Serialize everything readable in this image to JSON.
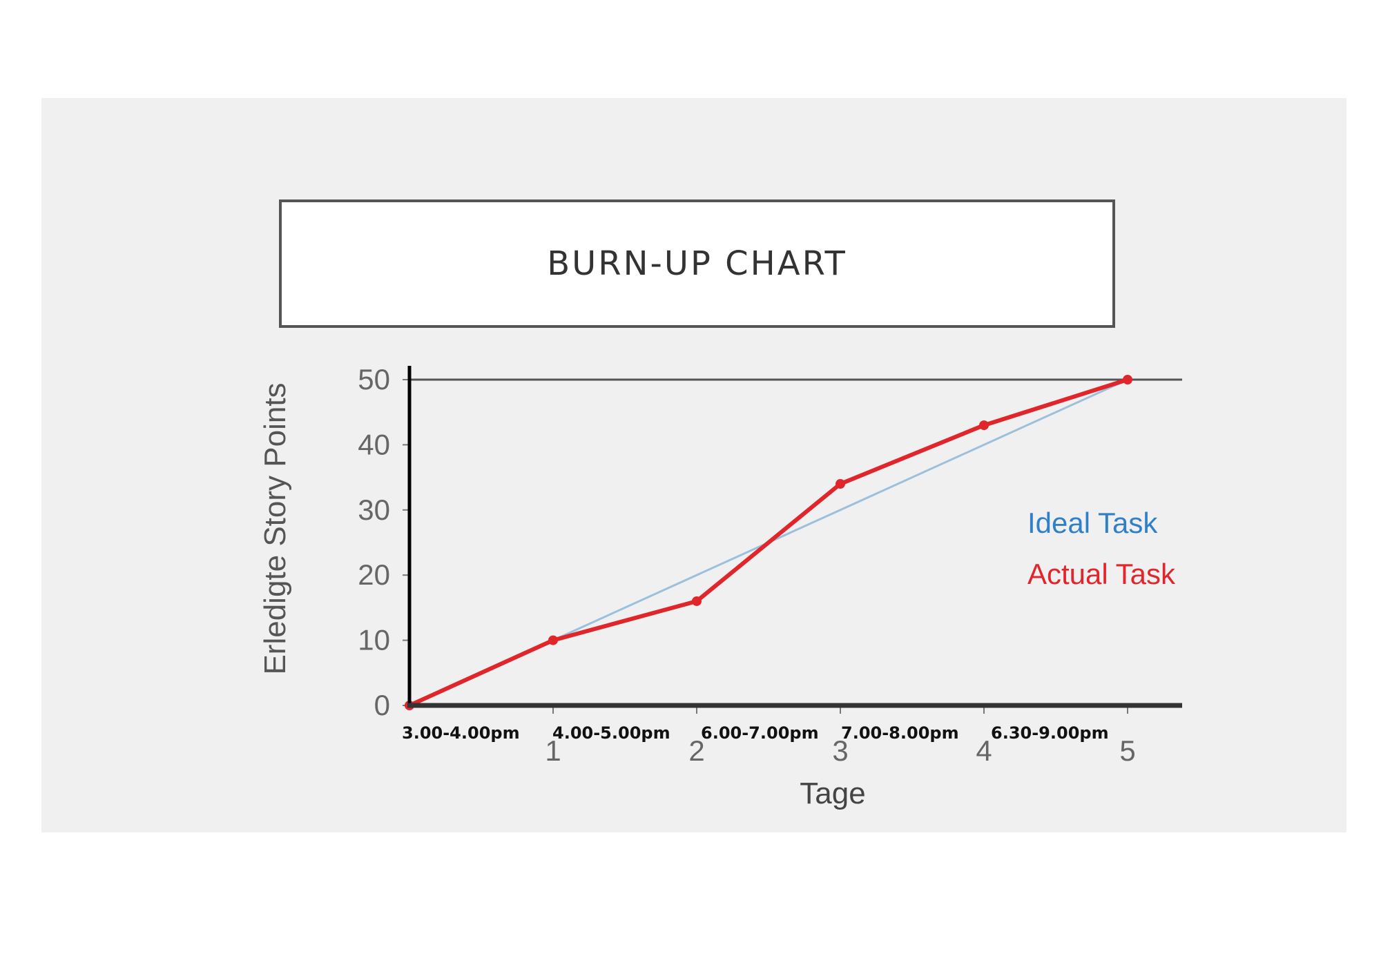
{
  "chart_data": {
    "type": "line",
    "title": "BURN-UP CHART",
    "xlabel": "Tage",
    "ylabel": "Erledigte Story Points",
    "x": [
      0,
      1,
      2,
      3,
      4,
      5
    ],
    "xticks": [
      "1",
      "2",
      "3",
      "4",
      "5"
    ],
    "yticks": [
      "0",
      "10",
      "20",
      "30",
      "40",
      "50"
    ],
    "xlim": [
      0,
      5
    ],
    "ylim": [
      0,
      50
    ],
    "time_labels": [
      "3.00-4.00pm",
      "4.00-5.00pm",
      "6.00-7.00pm",
      "7.00-8.00pm",
      "6.30-9.00pm"
    ],
    "target": 50,
    "series": [
      {
        "name": "Ideal Task",
        "color": "#9cc0dc",
        "x": [
          1,
          5
        ],
        "y": [
          10,
          50
        ]
      },
      {
        "name": "Actual Task",
        "color": "#e0262b",
        "x": [
          0,
          1,
          2,
          3,
          4,
          5
        ],
        "y": [
          0,
          10,
          16,
          34,
          43,
          50
        ]
      }
    ],
    "legend": [
      {
        "label": "Ideal Task",
        "color": "#2f80c8"
      },
      {
        "label": "Actual Task",
        "color": "#e0262b"
      }
    ],
    "legend_position": "right",
    "grid": false
  }
}
